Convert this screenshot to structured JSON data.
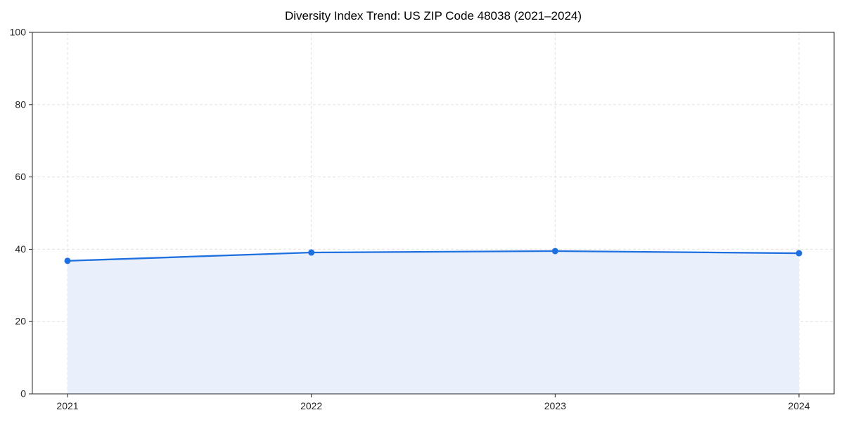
{
  "page": {
    "background": "#ffffff"
  },
  "chart_data": {
    "type": "line",
    "title": "Diversity Index Trend: US ZIP Code 48038 (2021–2024)",
    "x": [
      "2021",
      "2022",
      "2023",
      "2024"
    ],
    "series": [
      {
        "name": "Diversity Index",
        "values": [
          36.8,
          39.1,
          39.5,
          38.9
        ]
      }
    ],
    "xlabel": "",
    "ylabel": "",
    "ylim": [
      0,
      100
    ],
    "yticks": [
      0,
      20,
      40,
      60,
      80,
      100
    ],
    "grid": true,
    "grid_style": "dashed",
    "legend": false,
    "area_fill": true,
    "markers": true,
    "colors": {
      "line": "#1e6fe0",
      "marker": "#1e6fe0",
      "area_fill": "#e9f0fc",
      "grid": "#e2e2e2",
      "axis": "#262626",
      "tick_label": "#262626",
      "title": "#000000",
      "background": "#ffffff"
    }
  }
}
